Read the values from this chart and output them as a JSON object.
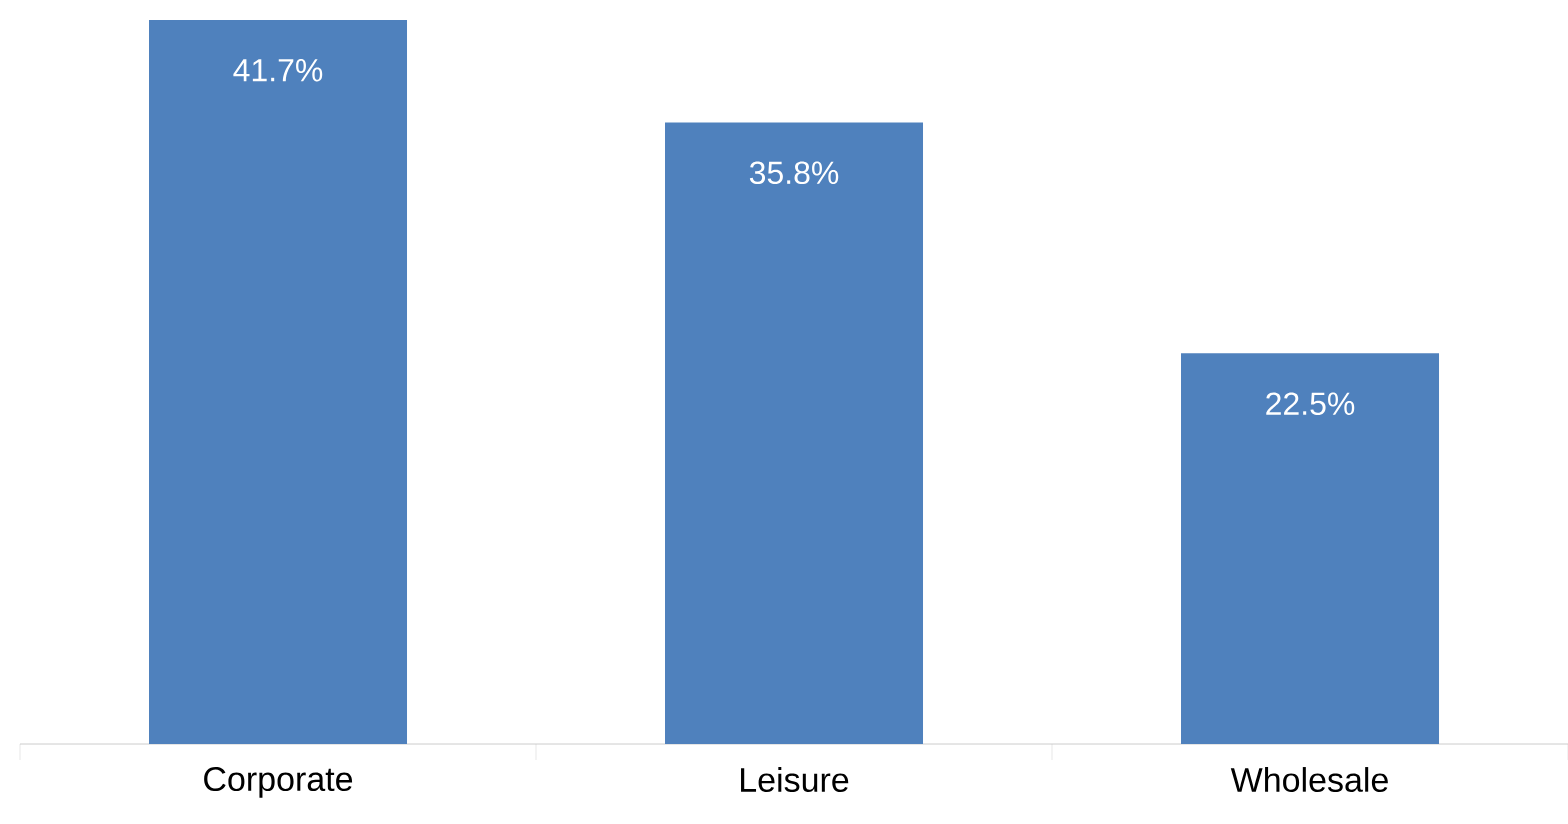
{
  "chart_data": {
    "type": "bar",
    "categories": [
      "Corporate",
      "Leisure",
      "Wholesale"
    ],
    "values": [
      41.7,
      35.8,
      22.5
    ],
    "value_labels": [
      "41.7%",
      "35.8%",
      "22.5%"
    ],
    "color": "#4f81bd"
  }
}
